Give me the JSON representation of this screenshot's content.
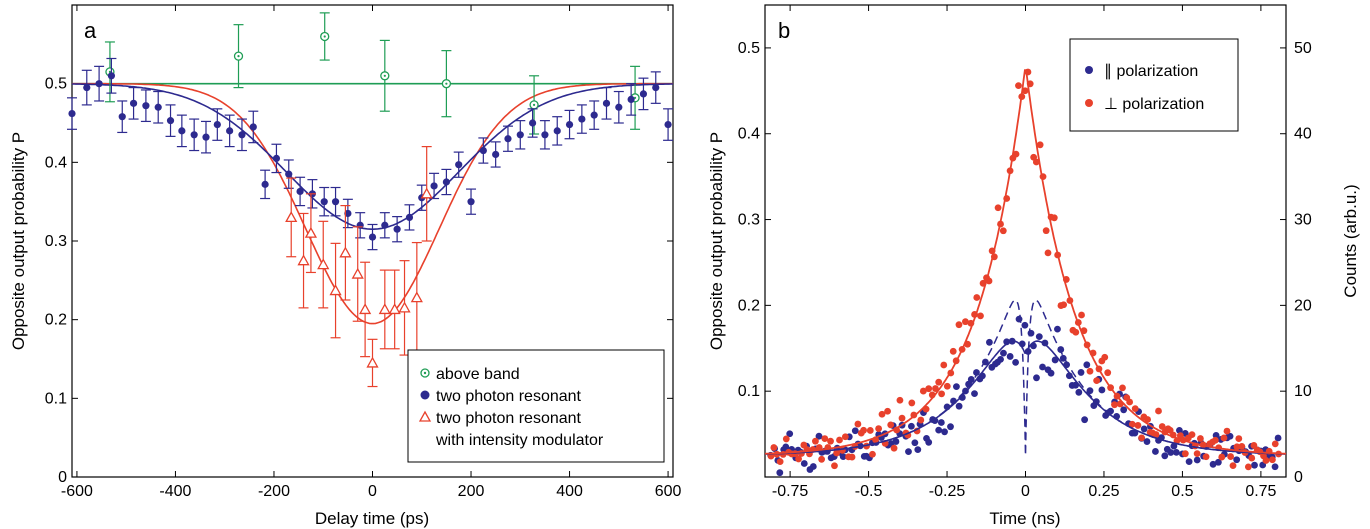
{
  "chart_data": [
    {
      "panel": "a",
      "type": "scatter",
      "xlabel": "Delay time (ps)",
      "ylabel": "Opposite output probability P",
      "xlim": [
        -610,
        610
      ],
      "ylim": [
        0,
        0.6
      ],
      "xticks": [
        -600,
        -400,
        -200,
        0,
        200,
        400,
        600
      ],
      "yticks": [
        0,
        0.1,
        0.2,
        0.3,
        0.4,
        0.5
      ],
      "ytick_labels": [
        "0",
        "0.1",
        "0.2",
        "0.3",
        "0.4",
        "0.5"
      ],
      "series": [
        {
          "name": "above band",
          "color": "#1f9d55",
          "marker": "open-circle",
          "points": [
            {
              "x": -533,
              "y": 0.515,
              "err": 0.038
            },
            {
              "x": -272,
              "y": 0.535,
              "err": 0.04
            },
            {
              "x": -97,
              "y": 0.56,
              "err": 0.03
            },
            {
              "x": 25,
              "y": 0.51,
              "err": 0.045
            },
            {
              "x": 150,
              "y": 0.5,
              "err": 0.042
            },
            {
              "x": 328,
              "y": 0.473,
              "err": 0.037
            },
            {
              "x": 533,
              "y": 0.482,
              "err": 0.04
            }
          ],
          "fit": "constant 0.5"
        },
        {
          "name": "two photon resonant",
          "color": "#2d2a8f",
          "marker": "filled-circle",
          "points": [
            {
              "x": -610,
              "y": 0.462,
              "err": 0.02
            },
            {
              "x": -580,
              "y": 0.495,
              "err": 0.022
            },
            {
              "x": -555,
              "y": 0.5,
              "err": 0.022
            },
            {
              "x": -530,
              "y": 0.51,
              "err": 0.022
            },
            {
              "x": -508,
              "y": 0.458,
              "err": 0.02
            },
            {
              "x": -485,
              "y": 0.475,
              "err": 0.02
            },
            {
              "x": -460,
              "y": 0.472,
              "err": 0.02
            },
            {
              "x": -435,
              "y": 0.47,
              "err": 0.02
            },
            {
              "x": -410,
              "y": 0.453,
              "err": 0.02
            },
            {
              "x": -387,
              "y": 0.44,
              "err": 0.02
            },
            {
              "x": -362,
              "y": 0.435,
              "err": 0.02
            },
            {
              "x": -338,
              "y": 0.432,
              "err": 0.02
            },
            {
              "x": -315,
              "y": 0.448,
              "err": 0.02
            },
            {
              "x": -290,
              "y": 0.44,
              "err": 0.02
            },
            {
              "x": -265,
              "y": 0.435,
              "err": 0.02
            },
            {
              "x": -242,
              "y": 0.445,
              "err": 0.02
            },
            {
              "x": -218,
              "y": 0.372,
              "err": 0.018
            },
            {
              "x": -195,
              "y": 0.405,
              "err": 0.018
            },
            {
              "x": -170,
              "y": 0.385,
              "err": 0.018
            },
            {
              "x": -147,
              "y": 0.363,
              "err": 0.018
            },
            {
              "x": -122,
              "y": 0.36,
              "err": 0.018
            },
            {
              "x": -98,
              "y": 0.35,
              "err": 0.018
            },
            {
              "x": -75,
              "y": 0.35,
              "err": 0.018
            },
            {
              "x": -50,
              "y": 0.335,
              "err": 0.018
            },
            {
              "x": -25,
              "y": 0.32,
              "err": 0.016
            },
            {
              "x": 0,
              "y": 0.305,
              "err": 0.016
            },
            {
              "x": 25,
              "y": 0.32,
              "err": 0.016
            },
            {
              "x": 50,
              "y": 0.315,
              "err": 0.016
            },
            {
              "x": 75,
              "y": 0.33,
              "err": 0.016
            },
            {
              "x": 100,
              "y": 0.355,
              "err": 0.016
            },
            {
              "x": 125,
              "y": 0.37,
              "err": 0.016
            },
            {
              "x": 150,
              "y": 0.375,
              "err": 0.016
            },
            {
              "x": 175,
              "y": 0.397,
              "err": 0.016
            },
            {
              "x": 200,
              "y": 0.35,
              "err": 0.016
            },
            {
              "x": 225,
              "y": 0.415,
              "err": 0.016
            },
            {
              "x": 250,
              "y": 0.41,
              "err": 0.016
            },
            {
              "x": 275,
              "y": 0.43,
              "err": 0.016
            },
            {
              "x": 300,
              "y": 0.435,
              "err": 0.018
            },
            {
              "x": 325,
              "y": 0.45,
              "err": 0.018
            },
            {
              "x": 350,
              "y": 0.435,
              "err": 0.018
            },
            {
              "x": 375,
              "y": 0.44,
              "err": 0.018
            },
            {
              "x": 400,
              "y": 0.448,
              "err": 0.018
            },
            {
              "x": 425,
              "y": 0.455,
              "err": 0.018
            },
            {
              "x": 450,
              "y": 0.46,
              "err": 0.018
            },
            {
              "x": 475,
              "y": 0.475,
              "err": 0.02
            },
            {
              "x": 500,
              "y": 0.47,
              "err": 0.02
            },
            {
              "x": 525,
              "y": 0.48,
              "err": 0.02
            },
            {
              "x": 550,
              "y": 0.487,
              "err": 0.02
            },
            {
              "x": 575,
              "y": 0.495,
              "err": 0.02
            },
            {
              "x": 600,
              "y": 0.448,
              "err": 0.02
            }
          ],
          "fit": "gaussian dip, baseline 0.5, minimum 0.315"
        },
        {
          "name": "two photon resonant with intensity modulator",
          "color": "#e8412c",
          "marker": "open-triangle",
          "points": [
            {
              "x": -165,
              "y": 0.33,
              "err": 0.05
            },
            {
              "x": -140,
              "y": 0.275,
              "err": 0.06
            },
            {
              "x": -125,
              "y": 0.31,
              "err": 0.05
            },
            {
              "x": -100,
              "y": 0.27,
              "err": 0.055
            },
            {
              "x": -75,
              "y": 0.237,
              "err": 0.06
            },
            {
              "x": -55,
              "y": 0.285,
              "err": 0.06
            },
            {
              "x": -30,
              "y": 0.258,
              "err": 0.06
            },
            {
              "x": -15,
              "y": 0.213,
              "err": 0.06
            },
            {
              "x": 0,
              "y": 0.145,
              "err": 0.03
            },
            {
              "x": 25,
              "y": 0.213,
              "err": 0.05
            },
            {
              "x": 45,
              "y": 0.213,
              "err": 0.05
            },
            {
              "x": 65,
              "y": 0.215,
              "err": 0.06
            },
            {
              "x": 90,
              "y": 0.228,
              "err": 0.07
            },
            {
              "x": 110,
              "y": 0.36,
              "err": 0.06
            }
          ],
          "fit": "gaussian dip, baseline 0.5, minimum 0.195"
        }
      ],
      "legend": {
        "placement": "bottom-right",
        "entries": [
          "above band",
          "two photon resonant",
          "two photon resonant",
          "with intensity modulator"
        ]
      }
    },
    {
      "panel": "b",
      "type": "scatter",
      "xlabel": "Time (ns)",
      "ylabel": "Opposite output probability P",
      "y2label": "Counts (arb.u.)",
      "xlim": [
        -0.83,
        0.83
      ],
      "ylim": [
        0.0,
        0.55
      ],
      "y2lim": [
        0,
        55
      ],
      "xticks": [
        -0.75,
        -0.5,
        -0.25,
        0,
        0.25,
        0.5,
        0.75
      ],
      "xtick_labels": [
        "-0.75",
        "-0.5",
        "-0.25",
        "0",
        "0.25",
        "0.5",
        "0.75"
      ],
      "yticks": [
        0.1,
        0.2,
        0.3,
        0.4,
        0.5
      ],
      "ytick_labels": [
        "0.1",
        "0.2",
        "0.3",
        "0.4",
        "0.5"
      ],
      "y2ticks": [
        0,
        10,
        20,
        30,
        40,
        50
      ],
      "series": [
        {
          "name": "∥ polarization",
          "color": "#2d2a8f",
          "marker": "filled-circle",
          "fit": "double-exponential with central dip (solid) and dashed convolution"
        },
        {
          "name": "⊥ polarization",
          "color": "#e8412c",
          "marker": "filled-circle",
          "fit": "two-sided exponential, peak 0.48 at t=0"
        }
      ],
      "legend": {
        "placement": "top-right",
        "entries": [
          "∥ polarization",
          "⊥ polarization"
        ]
      }
    }
  ],
  "labels": {
    "panel_a_letter": "a",
    "panel_b_letter": "b",
    "a_xlabel": "Delay time (ps)",
    "a_ylabel": "Opposite output probability P",
    "b_xlabel": "Time (ns)",
    "b_ylabel": "Opposite output probability P",
    "b_y2label": "Counts (arb.u.)",
    "a_legend_1": "above band",
    "a_legend_2": "two photon resonant",
    "a_legend_3": "two photon resonant",
    "a_legend_4": "with intensity modulator",
    "b_legend_1": "∥ polarization",
    "b_legend_2": "⊥ polarization"
  }
}
